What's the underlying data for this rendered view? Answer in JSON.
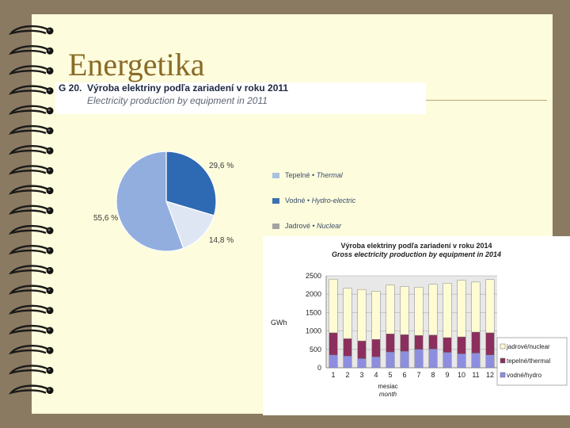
{
  "slide": {
    "title": "Energetika"
  },
  "pie_figure": {
    "label": "G 20.",
    "title": "Výroba elektriny podľa zariadení v roku 2011",
    "subtitle": "Electricity production by equipment in 2011",
    "slice_labels": [
      "29,6 %",
      "14,8 %",
      "55,6 %"
    ],
    "legend": [
      {
        "name": "Tepelné",
        "sep": " • ",
        "en": "Thermal",
        "color": "#a8c1e0"
      },
      {
        "name": "Vodné",
        "sep": " • ",
        "en": "Hydro-electric",
        "color": "#3d70b0"
      },
      {
        "name": "Jadrové",
        "sep": " • ",
        "en": "Nuclear",
        "color": "#a3a3a3"
      }
    ]
  },
  "bar_figure": {
    "title": "Výroba elektriny podľa zariadení v roku 2014",
    "subtitle": "Gross electricity production by equipment in 2014",
    "ylabel": "GWh",
    "xlabel": "mesiac",
    "xlabel2": "month",
    "legend": [
      {
        "name": "jadrové/nuclear",
        "color": "#fffcd4"
      },
      {
        "name": "tepelné/thermal",
        "color": "#8c2f5c"
      },
      {
        "name": "vodné/hydro",
        "color": "#8e8ee0"
      }
    ]
  },
  "chart_data": [
    {
      "type": "pie",
      "title": "Výroba elektriny podľa zariadení v roku 2011",
      "subtitle": "Electricity production by equipment in 2011",
      "series": [
        {
          "name": "Vodné • Hydro-electric",
          "value": 29.6,
          "color": "#2e69b3"
        },
        {
          "name": "Tepelné • Thermal",
          "value": 14.8,
          "color": "#dfe6f3"
        },
        {
          "name": "Jadrové • Nuclear",
          "value": 55.6,
          "color": "#92aede"
        }
      ]
    },
    {
      "type": "bar",
      "title": "Výroba elektriny podľa zariadení v roku 2014",
      "subtitle": "Gross electricity production by equipment in 2014",
      "ylabel": "GWh",
      "xlabel": "mesiac month",
      "ylim": [
        0,
        2500
      ],
      "yticks": [
        0,
        500,
        1000,
        1500,
        2000,
        2500
      ],
      "grid": true,
      "stacked": true,
      "legend_position": "right",
      "categories": [
        "1",
        "2",
        "3",
        "4",
        "5",
        "6",
        "7",
        "8",
        "9",
        "10",
        "11",
        "12"
      ],
      "series": [
        {
          "name": "vodné/hydro",
          "color": "#8e8ee0",
          "values": [
            350,
            320,
            250,
            300,
            430,
            450,
            500,
            510,
            420,
            380,
            400,
            350
          ]
        },
        {
          "name": "tepelné/thermal",
          "color": "#8c2f5c",
          "values": [
            600,
            470,
            480,
            470,
            490,
            450,
            380,
            380,
            400,
            460,
            570,
            600
          ]
        },
        {
          "name": "jadrové/nuclear",
          "color": "#fffcd4",
          "values": [
            1460,
            1370,
            1400,
            1310,
            1330,
            1310,
            1310,
            1380,
            1480,
            1540,
            1360,
            1450
          ]
        }
      ]
    }
  ]
}
